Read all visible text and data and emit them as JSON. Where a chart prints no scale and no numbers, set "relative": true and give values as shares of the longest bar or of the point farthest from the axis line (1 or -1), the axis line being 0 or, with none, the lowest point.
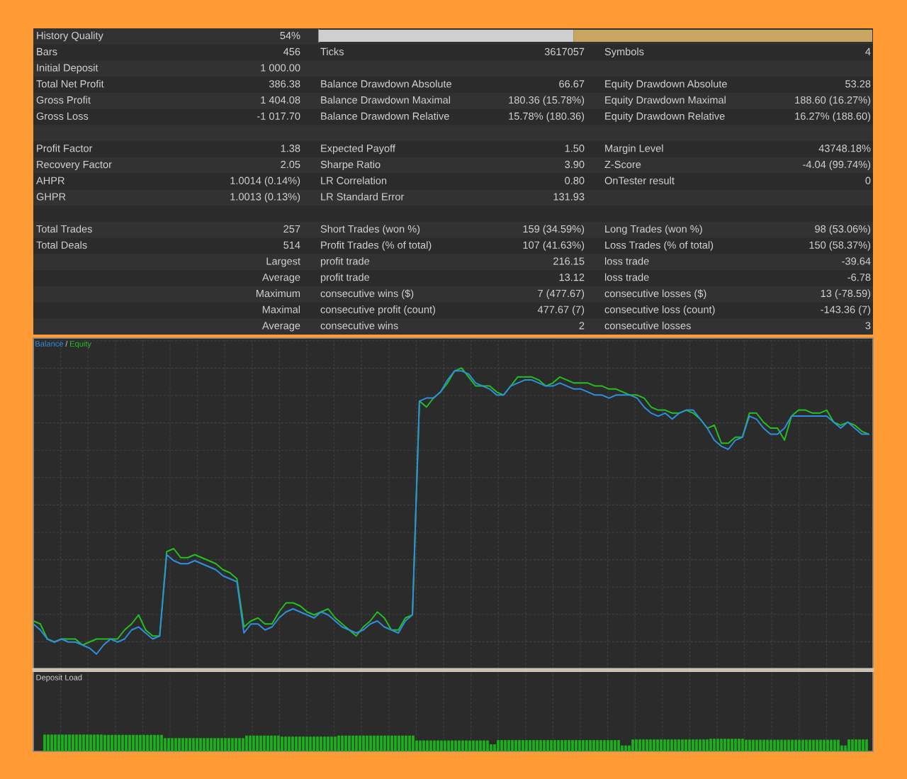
{
  "chart_data": [
    {
      "type": "other",
      "annotations": [
        "History Quality",
        "54%",
        null,
        null,
        null,
        null,
        "Bars",
        "456",
        "Ticks",
        "3617057",
        "Symbols",
        "4",
        "Initial Deposit",
        "1 000.00",
        null,
        null,
        null,
        null,
        "Total Net Profit",
        "386.38",
        "Balance Drawdown Absolute",
        "66.67",
        "Equity Drawdown Absolute",
        "53.28",
        "Gross Profit",
        "1 404.08",
        "Balance Drawdown Maximal",
        "180.36 (15.78%)",
        "Equity Drawdown Maximal",
        "188.60 (16.27%)",
        "Gross Loss",
        "-1 017.70",
        "Balance Drawdown Relative",
        "15.78% (180.36)",
        "Equity Drawdown Relative",
        "16.27% (188.60)",
        null,
        null,
        null,
        null,
        null,
        null,
        "Profit Factor",
        "1.38",
        "Expected Payoff",
        "1.50",
        "Margin Level",
        "43748.18%",
        "Recovery Factor",
        "2.05",
        "Sharpe Ratio",
        "3.90",
        "Z-Score",
        "-4.04 (99.74%)",
        "AHPR",
        "1.0014 (0.14%)",
        "LR Correlation",
        "0.80",
        "OnTester result",
        "0",
        "GHPR",
        "1.0013 (0.13%)",
        "LR Standard Error",
        "131.93",
        null,
        null,
        null,
        null,
        null,
        null,
        null,
        null,
        "Total Trades",
        "257",
        "Short Trades (won %)",
        "159 (34.59%)",
        "Long Trades (won %)",
        "98 (53.06%)",
        "Total Deals",
        "514",
        "Profit Trades (% of total)",
        "107 (41.63%)",
        "Loss Trades (% of total)",
        "150 (58.37%)",
        null,
        "Largest",
        "profit trade",
        "216.15",
        "loss trade",
        "-39.64",
        null,
        "Average",
        "profit trade",
        "13.12",
        "loss trade",
        "-6.78",
        null,
        "Maximum",
        "consecutive wins ($)",
        "7 (477.67)",
        "consecutive losses ($)",
        "13 (-78.59)",
        null,
        "Maximal",
        "consecutive profit (count)",
        "477.67 (7)",
        "consecutive loss (count)",
        "-143.36 (7)",
        null,
        "Average",
        "consecutive wins",
        "2",
        "consecutive losses",
        "3"
      ]
    },
    {
      "type": "bar",
      "orientation": "horizontal",
      "stacked": true,
      "relative": true,
      "categories": [
        null
      ],
      "series": [
        {
          "color": "#cfcfcf",
          "values": [
            0.46
          ]
        },
        {
          "color": "#c9a562",
          "values": [
            0.54
          ]
        }
      ]
    },
    {
      "type": "line",
      "relative": true,
      "grid": true,
      "legend": "top left",
      "marker": "none",
      "line_style": "solid",
      "annotations": [
        "/"
      ],
      "categories": [
        null,
        null,
        null,
        null,
        null,
        null,
        null,
        null,
        null,
        null,
        null,
        null,
        null,
        null,
        null,
        null,
        null,
        null,
        null,
        null,
        null,
        null,
        null,
        null,
        null,
        null,
        null,
        null,
        null,
        null,
        null,
        null,
        null,
        null,
        null,
        null,
        null,
        null,
        null,
        null,
        null,
        null,
        null,
        null,
        null,
        null,
        null,
        null,
        null,
        null,
        null,
        null,
        null,
        null,
        null,
        null,
        null,
        null,
        null,
        null,
        null,
        null,
        null,
        null,
        null,
        null,
        null,
        null,
        null,
        null,
        null,
        null,
        null,
        null,
        null,
        null,
        null,
        null,
        null,
        null,
        null,
        null,
        null,
        null,
        null,
        null,
        null,
        null,
        null,
        null,
        null,
        null,
        null,
        null,
        null,
        null,
        null,
        null,
        null,
        null,
        null,
        null,
        null,
        null,
        null,
        null,
        null,
        null,
        null,
        null,
        null,
        null,
        null,
        null,
        null,
        null,
        null,
        null,
        null,
        null
      ],
      "series": [
        {
          "name": "Balance",
          "color": "#2e8fe0",
          "values": [
            0.15,
            0.13,
            0.1,
            0.09,
            0.1,
            0.09,
            0.09,
            0.08,
            0.07,
            0.05,
            0.08,
            0.1,
            0.09,
            0.1,
            0.13,
            0.14,
            0.12,
            0.1,
            0.11,
            0.38,
            0.36,
            0.35,
            0.35,
            0.36,
            0.35,
            0.34,
            0.33,
            0.31,
            0.3,
            0.29,
            0.12,
            0.15,
            0.15,
            0.13,
            0.14,
            0.17,
            0.19,
            0.2,
            0.19,
            0.18,
            0.17,
            0.19,
            0.18,
            0.16,
            0.14,
            0.13,
            0.12,
            0.13,
            0.15,
            0.16,
            0.14,
            0.13,
            0.12,
            0.16,
            0.18,
            0.89,
            0.9,
            0.9,
            0.92,
            0.96,
            0.99,
            0.99,
            0.98,
            0.95,
            0.94,
            0.93,
            0.91,
            0.91,
            0.94,
            0.95,
            0.96,
            0.96,
            0.95,
            0.94,
            0.94,
            0.95,
            0.94,
            0.93,
            0.93,
            0.92,
            0.91,
            0.91,
            0.9,
            0.91,
            0.91,
            0.91,
            0.9,
            0.87,
            0.85,
            0.84,
            0.85,
            0.83,
            0.85,
            0.86,
            0.86,
            0.83,
            0.8,
            0.76,
            0.74,
            0.73,
            0.76,
            0.77,
            0.84,
            0.83,
            0.8,
            0.78,
            0.78,
            0.8,
            0.84,
            0.84,
            0.84,
            0.84,
            0.84,
            0.84,
            0.82,
            0.8,
            0.82,
            0.8,
            0.78,
            0.78
          ]
        },
        {
          "name": "Equity",
          "color": "#23c11f",
          "values": [
            0.16,
            0.15,
            0.1,
            0.09,
            0.1,
            0.1,
            0.1,
            0.08,
            0.09,
            0.1,
            0.1,
            0.1,
            0.1,
            0.13,
            0.15,
            0.18,
            0.13,
            0.11,
            0.11,
            0.39,
            0.4,
            0.37,
            0.37,
            0.38,
            0.37,
            0.36,
            0.35,
            0.33,
            0.32,
            0.3,
            0.14,
            0.16,
            0.17,
            0.15,
            0.15,
            0.19,
            0.22,
            0.22,
            0.21,
            0.19,
            0.18,
            0.19,
            0.2,
            0.17,
            0.15,
            0.13,
            0.11,
            0.14,
            0.16,
            0.19,
            0.17,
            0.13,
            0.13,
            0.17,
            0.18,
            0.89,
            0.87,
            0.9,
            0.92,
            0.95,
            0.99,
            1.0,
            0.97,
            0.94,
            0.94,
            0.94,
            0.92,
            0.91,
            0.94,
            0.97,
            0.97,
            0.97,
            0.96,
            0.94,
            0.95,
            0.97,
            0.96,
            0.95,
            0.95,
            0.95,
            0.94,
            0.94,
            0.93,
            0.93,
            0.92,
            0.91,
            0.91,
            0.9,
            0.87,
            0.86,
            0.86,
            0.85,
            0.85,
            0.86,
            0.85,
            0.83,
            0.8,
            0.81,
            0.75,
            0.75,
            0.77,
            0.77,
            0.85,
            0.85,
            0.82,
            0.8,
            0.8,
            0.76,
            0.84,
            0.86,
            0.86,
            0.85,
            0.85,
            0.86,
            0.82,
            0.81,
            0.82,
            0.81,
            0.79,
            0.78
          ]
        }
      ]
    },
    {
      "type": "bar",
      "title": "Deposit Load",
      "relative": true,
      "grid": "x",
      "color": "#17b317",
      "categories": [
        null,
        null,
        null,
        null,
        null,
        null,
        null,
        null,
        null,
        null,
        null,
        null,
        null,
        null,
        null,
        null,
        null,
        null,
        null,
        null,
        null,
        null,
        null,
        null,
        null,
        null,
        null,
        null,
        null,
        null,
        null,
        null,
        null,
        null,
        null,
        null,
        null,
        null,
        null,
        null,
        null,
        null,
        null,
        null,
        null,
        null,
        null,
        null,
        null,
        null,
        null,
        null,
        null,
        null,
        null,
        null,
        null,
        null,
        null,
        null,
        null,
        null,
        null,
        null,
        null,
        null,
        null,
        null,
        null,
        null,
        null,
        null,
        null,
        null,
        null,
        null,
        null,
        null,
        null,
        null,
        null,
        null,
        null,
        null,
        null,
        null,
        null,
        null,
        null,
        null,
        null,
        null,
        null,
        null,
        null,
        null,
        null,
        null,
        null,
        null,
        null,
        null,
        null,
        null,
        null,
        null,
        null,
        null,
        null,
        null,
        null,
        null,
        null,
        null,
        null,
        null,
        null,
        null,
        null,
        null,
        null,
        null,
        null,
        null,
        null,
        null,
        null,
        null,
        null,
        null,
        null,
        null,
        null,
        null,
        null,
        null,
        null,
        null,
        null,
        null,
        null,
        null,
        null,
        null,
        null,
        null,
        null,
        null,
        null,
        null,
        null,
        null,
        null,
        null,
        null,
        null,
        null,
        null,
        null,
        null,
        null,
        null,
        null,
        null,
        null,
        null,
        null,
        null,
        null,
        null,
        null,
        null,
        null,
        null,
        null,
        null,
        null,
        null,
        null,
        null,
        null,
        null,
        null,
        null,
        null,
        null,
        null,
        null,
        null,
        null,
        null,
        null,
        null,
        null,
        null,
        null,
        null,
        null,
        null,
        null,
        null,
        null,
        null,
        null,
        null,
        null,
        null,
        null,
        null,
        null,
        null,
        null,
        null,
        null,
        null,
        null,
        null,
        null,
        null,
        null,
        null,
        null,
        null,
        null,
        null,
        null,
        null,
        null,
        null,
        null,
        null,
        null,
        null
      ],
      "values": [
        1,
        1,
        1,
        1,
        1,
        1,
        1,
        1,
        1,
        1,
        1,
        1,
        1,
        1,
        1,
        1,
        1,
        0.98,
        0.98,
        0.98,
        0.98,
        0.98,
        0.98,
        0.98,
        0.98,
        0.98,
        0.98,
        0.98,
        0.98,
        0.98,
        0.98,
        0.98,
        0.98,
        0.98,
        0.79,
        0.79,
        0.79,
        0.79,
        0.79,
        0.79,
        0.79,
        0.79,
        0.79,
        0.79,
        0.79,
        0.79,
        0.79,
        0.79,
        0.79,
        0.79,
        0.79,
        0.79,
        0.79,
        0.79,
        0.79,
        0.79,
        0.79,
        0.94,
        0.94,
        0.94,
        0.94,
        0.94,
        0.94,
        0.94,
        0.94,
        0.94,
        0.94,
        0.88,
        0.88,
        0.88,
        0.88,
        0.88,
        0.88,
        0.88,
        0.88,
        0.88,
        0.88,
        0.88,
        0.88,
        0.88,
        0.88,
        0.88,
        0.88,
        0.94,
        0.94,
        0.94,
        0.94,
        0.94,
        0.94,
        0.94,
        0.94,
        0.94,
        0.94,
        0.94,
        0.94,
        0.94,
        0.94,
        0.94,
        0.94,
        0.94,
        0.94,
        0.94,
        0.94,
        0.94,
        0.94,
        0.65,
        0.65,
        0.65,
        0.65,
        0.65,
        0.65,
        0.65,
        0.65,
        0.65,
        0.65,
        0.65,
        0.65,
        0.65,
        0.65,
        0.65,
        0.65,
        0.65,
        0.65,
        0.65,
        0.65,
        0.65,
        0.42,
        0.42,
        0.67,
        0.67,
        0.67,
        0.67,
        0.67,
        0.67,
        0.67,
        0.67,
        0.67,
        0.67,
        0.67,
        0.67,
        0.67,
        0.67,
        0.67,
        0.67,
        0.67,
        0.67,
        0.67,
        0.67,
        0.67,
        0.67,
        0.67,
        0.67,
        0.67,
        0.67,
        0.67,
        0.67,
        0.67,
        0.67,
        0.67,
        0.67,
        0.67,
        0.67,
        0.67,
        0.35,
        0.35,
        0.35,
        0.71,
        0.71,
        0.71,
        0.71,
        0.71,
        0.71,
        0.71,
        0.71,
        0.71,
        0.71,
        0.71,
        0.71,
        0.71,
        0.71,
        0.71,
        0.71,
        0.71,
        0.71,
        0.71,
        0.71,
        0.71,
        0.71,
        0.75,
        0.75,
        0.75,
        0.75,
        0.75,
        0.75,
        0.75,
        0.75,
        0.75,
        0.75,
        0.69,
        0.69,
        0.69,
        0.69,
        0.69,
        0.69,
        0.69,
        0.69,
        0.69,
        0.69,
        0.69,
        0.69,
        0.69,
        0.69,
        0.69,
        0.69,
        0.69,
        0.69,
        0.69,
        0.69,
        0.69,
        0.69,
        0.69,
        0.69,
        0.69,
        0.69,
        0.69,
        0.35,
        0.35,
        0.71,
        0.71,
        0.71,
        0.71,
        0.71,
        0.71
      ]
    }
  ]
}
